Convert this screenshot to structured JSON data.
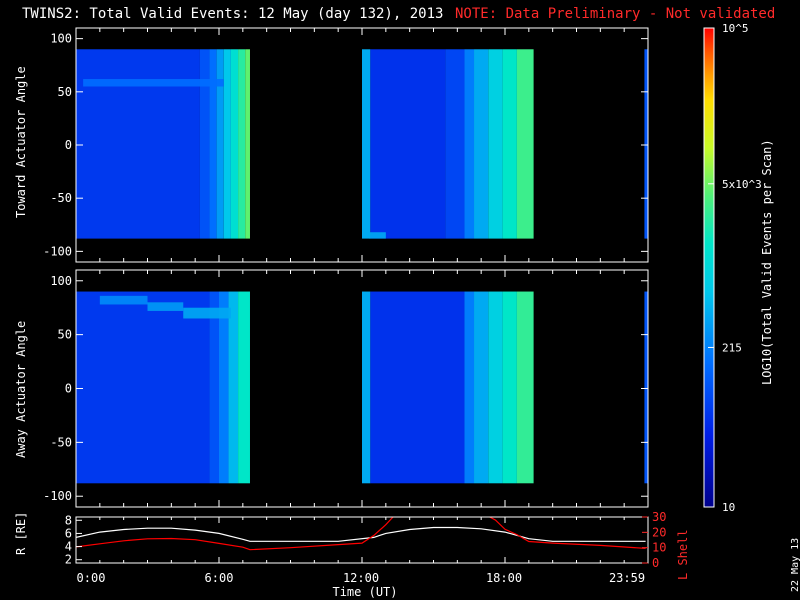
{
  "title": "TWINS2: Total Valid Events: 12 May (day 132), 2013",
  "note": "NOTE: Data Preliminary - Not validated",
  "date_stamp": "22 May 13",
  "colors": {
    "background": "#000000",
    "axes": "#ffffff",
    "note": "#ff2a2a",
    "l_shell": "#ff0000",
    "r_line": "#ffffff"
  },
  "colorbar": {
    "label": "LOG10(Total Valid Events per Scan)",
    "ticks": [
      "10^5",
      "5x10^3",
      "215",
      "10"
    ],
    "tick_values": [
      100000,
      5000,
      215,
      10
    ],
    "range": [
      10,
      100000
    ],
    "scale": "log"
  },
  "chart_data": [
    {
      "type": "heatmap",
      "ylabel": "Toward Actuator Angle",
      "ylim": [
        -110,
        110
      ],
      "y_ticks": [
        "100",
        "50",
        "0",
        "-50",
        "-100"
      ],
      "y_tick_values": [
        100,
        50,
        0,
        -50,
        -100
      ],
      "xlim": [
        0,
        24
      ],
      "x_ticks": [
        "0:00",
        "6:00",
        "12:00",
        "18:00",
        "23:59"
      ],
      "x_tick_values": [
        0,
        6,
        12,
        18,
        23.983
      ],
      "data_y_range": [
        -88,
        90
      ],
      "coverage_hours": [
        [
          0,
          7.3
        ],
        [
          12.0,
          19.2
        ],
        [
          23.85,
          24
        ]
      ],
      "columns": [
        {
          "t0": 0.0,
          "t1": 5.2,
          "log10": 1.8
        },
        {
          "t0": 5.2,
          "t1": 5.6,
          "log10": 2.0
        },
        {
          "t0": 5.6,
          "t1": 5.9,
          "log10": 2.2
        },
        {
          "t0": 5.9,
          "t1": 6.2,
          "log10": 2.5
        },
        {
          "t0": 6.2,
          "t1": 6.5,
          "log10": 2.8
        },
        {
          "t0": 6.5,
          "t1": 6.8,
          "log10": 3.1
        },
        {
          "t0": 6.8,
          "t1": 7.1,
          "log10": 3.4
        },
        {
          "t0": 7.1,
          "t1": 7.3,
          "log10": 3.65
        },
        {
          "t0": 12.0,
          "t1": 12.35,
          "log10": 2.6
        },
        {
          "t0": 12.35,
          "t1": 15.5,
          "log10": 1.75
        },
        {
          "t0": 15.5,
          "t1": 16.3,
          "log10": 1.9
        },
        {
          "t0": 16.3,
          "t1": 16.7,
          "log10": 2.3
        },
        {
          "t0": 16.7,
          "t1": 17.3,
          "log10": 2.6
        },
        {
          "t0": 17.3,
          "t1": 17.9,
          "log10": 2.9
        },
        {
          "t0": 17.9,
          "t1": 18.5,
          "log10": 3.2
        },
        {
          "t0": 18.5,
          "t1": 19.2,
          "log10": 3.5
        },
        {
          "t0": 23.85,
          "t1": 24.0,
          "log10": 2.0
        }
      ],
      "features": [
        {
          "t0": 0.3,
          "t1": 6.2,
          "y0": 55,
          "y1": 62,
          "log10": 2.2
        },
        {
          "t0": 12.3,
          "t1": 13.0,
          "y0": -88,
          "y1": -82,
          "log10": 2.6
        }
      ]
    },
    {
      "type": "heatmap",
      "ylabel": "Away Actuator Angle",
      "ylim": [
        -110,
        110
      ],
      "y_ticks": [
        "100",
        "50",
        "0",
        "-50",
        "-100"
      ],
      "y_tick_values": [
        100,
        50,
        0,
        -50,
        -100
      ],
      "xlim": [
        0,
        24
      ],
      "x_ticks": [
        "0:00",
        "6:00",
        "12:00",
        "18:00",
        "23:59"
      ],
      "x_tick_values": [
        0,
        6,
        12,
        18,
        23.983
      ],
      "data_y_range": [
        -88,
        90
      ],
      "coverage_hours": [
        [
          0,
          7.3
        ],
        [
          12.0,
          19.2
        ],
        [
          23.85,
          24
        ]
      ],
      "columns": [
        {
          "t0": 0.0,
          "t1": 5.6,
          "log10": 1.8
        },
        {
          "t0": 5.6,
          "t1": 6.0,
          "log10": 2.0
        },
        {
          "t0": 6.0,
          "t1": 6.4,
          "log10": 2.3
        },
        {
          "t0": 6.4,
          "t1": 6.8,
          "log10": 2.7
        },
        {
          "t0": 6.8,
          "t1": 7.3,
          "log10": 3.2
        },
        {
          "t0": 12.0,
          "t1": 12.35,
          "log10": 2.6
        },
        {
          "t0": 12.35,
          "t1": 16.3,
          "log10": 1.75
        },
        {
          "t0": 16.3,
          "t1": 16.7,
          "log10": 2.3
        },
        {
          "t0": 16.7,
          "t1": 17.3,
          "log10": 2.6
        },
        {
          "t0": 17.3,
          "t1": 17.9,
          "log10": 2.9
        },
        {
          "t0": 17.9,
          "t1": 18.5,
          "log10": 3.2
        },
        {
          "t0": 18.5,
          "t1": 19.2,
          "log10": 3.45
        },
        {
          "t0": 23.85,
          "t1": 24.0,
          "log10": 2.0
        }
      ],
      "features": [
        {
          "t0": 1.0,
          "t1": 3.0,
          "y0": 78,
          "y1": 86,
          "log10": 2.4
        },
        {
          "t0": 3.0,
          "t1": 4.5,
          "y0": 72,
          "y1": 80,
          "log10": 2.5
        },
        {
          "t0": 4.5,
          "t1": 6.5,
          "y0": 65,
          "y1": 75,
          "log10": 2.6
        }
      ]
    },
    {
      "type": "line",
      "ylabel": "R [RE]",
      "ylabel2": "L Shell",
      "xlabel": "Time (UT)",
      "xlim": [
        0,
        24
      ],
      "x_ticks": [
        "0:00",
        "6:00",
        "12:00",
        "18:00",
        "23:59"
      ],
      "x_tick_values": [
        0,
        6,
        12,
        18,
        23.983
      ],
      "ylim": [
        1.5,
        8.5
      ],
      "y_ticks": [
        "8",
        "6",
        "4",
        "2"
      ],
      "y_tick_values": [
        8,
        6,
        4,
        2
      ],
      "ylim2": [
        0,
        30
      ],
      "y2_ticks": [
        "30",
        "20",
        "10",
        "0"
      ],
      "y2_tick_values": [
        30,
        20,
        10,
        0
      ],
      "series": [
        {
          "name": "R",
          "axis": "left",
          "x": [
            0,
            1,
            2,
            3,
            4,
            5,
            6,
            7,
            7.3,
            9,
            11,
            12.5,
            13,
            14,
            15,
            16,
            17,
            18,
            19,
            20,
            22,
            23.9
          ],
          "y": [
            5.4,
            6.2,
            6.6,
            6.8,
            6.8,
            6.5,
            6.0,
            5.1,
            4.8,
            4.8,
            4.8,
            5.4,
            6.0,
            6.6,
            6.9,
            6.9,
            6.7,
            6.2,
            5.2,
            4.8,
            4.8,
            4.8
          ]
        },
        {
          "name": "L Shell",
          "axis": "right",
          "x": [
            0,
            1,
            2,
            3,
            4,
            5,
            6,
            7,
            7.3,
            9,
            11,
            12.0,
            12.5,
            13.0,
            13.3,
            13.5,
            17.3,
            17.6,
            18.0,
            18.5,
            19.0,
            20,
            22,
            23.9
          ],
          "y": [
            10.5,
            12.5,
            14.5,
            15.8,
            16.0,
            15.2,
            12.8,
            10.3,
            8.7,
            10.0,
            12.0,
            13.0,
            18.0,
            25.0,
            30.0,
            30.5,
            30.5,
            28.0,
            22.0,
            18.5,
            14.0,
            13.0,
            11.5,
            9.5
          ]
        }
      ]
    }
  ]
}
